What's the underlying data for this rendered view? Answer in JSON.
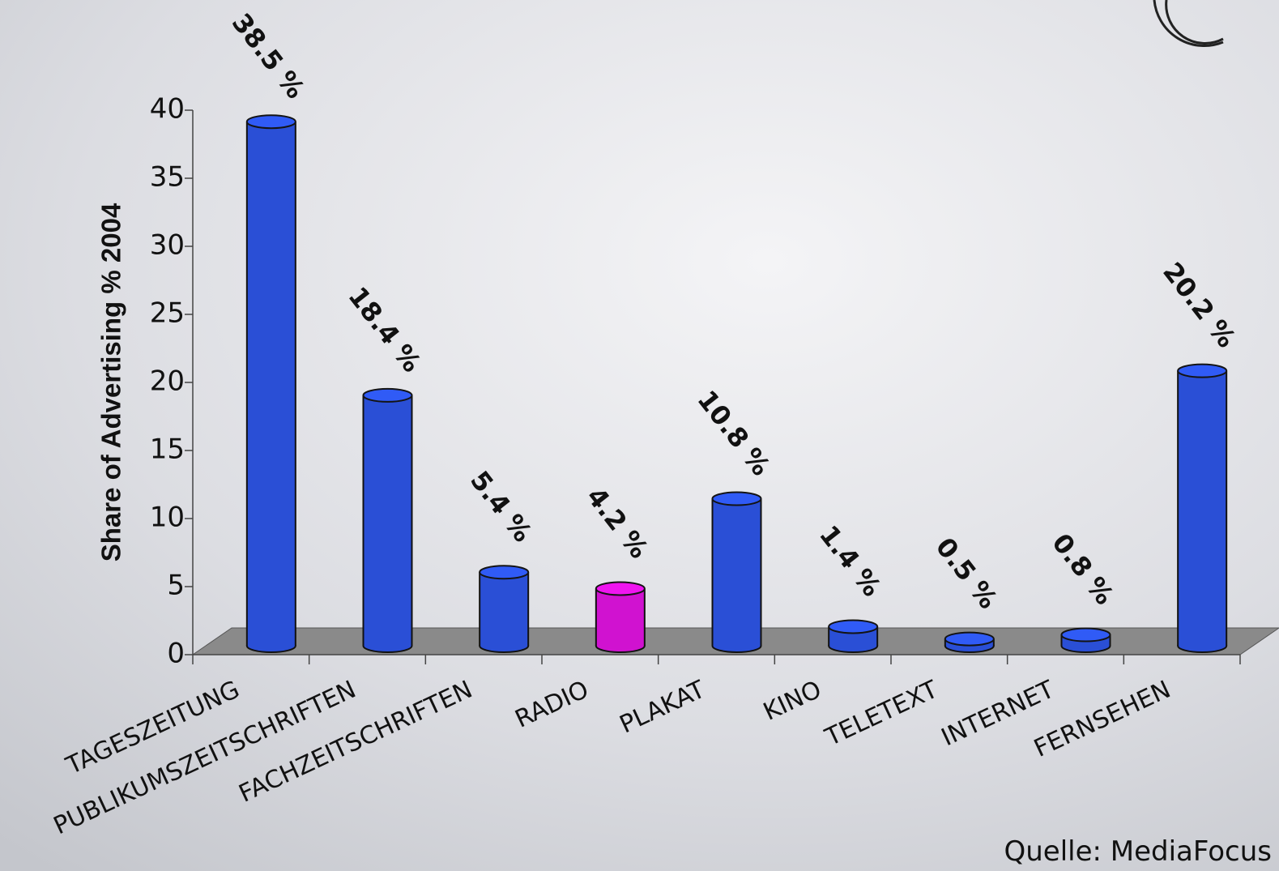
{
  "chart_data": {
    "type": "bar",
    "y_label": "Share of Advertising % 2004",
    "categories": [
      "TAGESZEITUNG",
      "PUBLIKUMSZEITSCHRIFTEN",
      "FACHZEITSCHRIFTEN",
      "RADIO",
      "PLAKAT",
      "KINO",
      "TELETEXT",
      "INTERNET",
      "FERNSEHEN"
    ],
    "values": [
      38.5,
      18.4,
      5.4,
      4.2,
      10.8,
      1.4,
      0.5,
      0.8,
      20.2
    ],
    "value_labels": [
      "38.5 %",
      "18.4 %",
      "5.4 %",
      "4.2 %",
      "10.8 %",
      "1.4 %",
      "0.5 %",
      "0.8 %",
      "20.2 %"
    ],
    "colors": [
      "#2a4fd6",
      "#2a4fd6",
      "#2a4fd6",
      "#d012d0",
      "#2a4fd6",
      "#2a4fd6",
      "#2a4fd6",
      "#2a4fd6",
      "#2a4fd6"
    ],
    "ylim": [
      0,
      40
    ],
    "yticks": [
      0,
      5,
      10,
      15,
      20,
      25,
      30,
      35,
      40
    ],
    "source": "Quelle: MediaFocus"
  }
}
